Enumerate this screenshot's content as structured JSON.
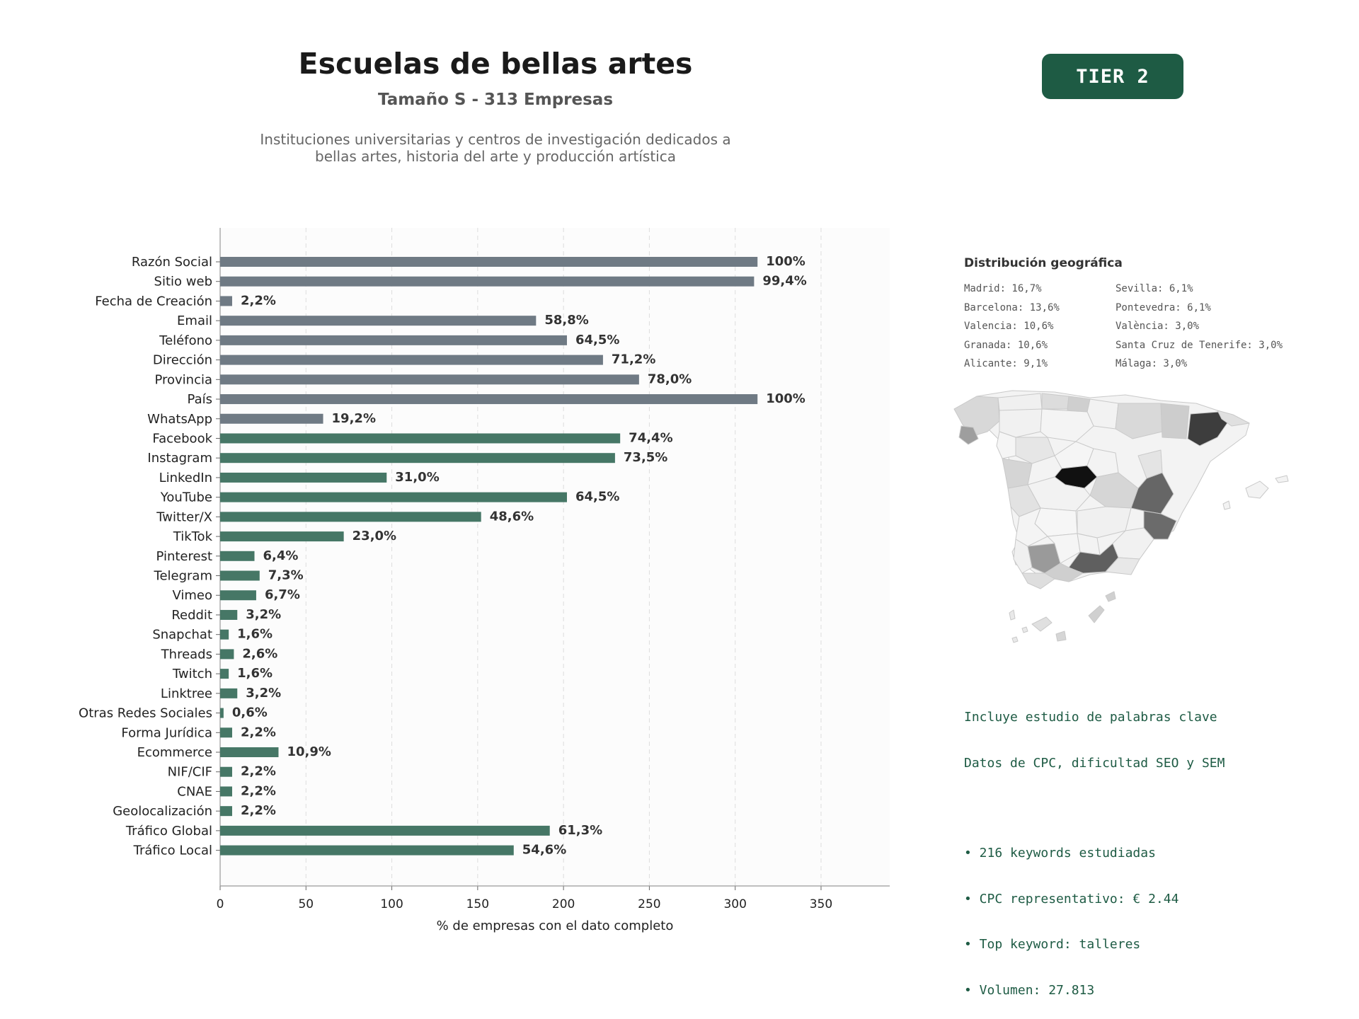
{
  "header": {
    "title": "Escuelas de bellas artes",
    "subtitle": "Tamaño S - 313 Empresas",
    "description_lines": [
      "Instituciones universitarias y centros de investigación dedicados a",
      "bellas artes, historia del arte y producción artística"
    ],
    "tier_label": "TIER 2"
  },
  "colors": {
    "gray_bar": "#6f7a84",
    "green_bar": "#467766",
    "accent": "#1e5b44",
    "plot_bg": "#fcfcfc"
  },
  "chart_data": {
    "type": "bar",
    "orientation": "horizontal",
    "xlabel": "% de empresas con el dato completo",
    "xlim": [
      0,
      390
    ],
    "xticks": [
      0,
      50,
      100,
      150,
      200,
      250,
      300,
      350
    ],
    "grid": "vertical dashed",
    "categories": [
      "Razón Social",
      "Sitio web",
      "Fecha de Creación",
      "Email",
      "Teléfono",
      "Dirección",
      "Provincia",
      "País",
      "WhatsApp",
      "Facebook",
      "Instagram",
      "LinkedIn",
      "YouTube",
      "Twitter/X",
      "TikTok",
      "Pinterest",
      "Telegram",
      "Vimeo",
      "Reddit",
      "Snapchat",
      "Threads",
      "Twitch",
      "Linktree",
      "Otras Redes Sociales",
      "Forma Jurídica",
      "Ecommerce",
      "NIF/CIF",
      "CNAE",
      "Geolocalización",
      "Tráfico Global",
      "Tráfico Local"
    ],
    "values": [
      313,
      311,
      7,
      184,
      202,
      223,
      244,
      313,
      60,
      233,
      230,
      97,
      202,
      152,
      72,
      20,
      23,
      21,
      10,
      5,
      8,
      5,
      10,
      2,
      7,
      34,
      7,
      7,
      7,
      192,
      171
    ],
    "labels": [
      "100%",
      "99,4%",
      "2,2%",
      "58,8%",
      "64,5%",
      "71,2%",
      "78,0%",
      "100%",
      "19,2%",
      "74,4%",
      "73,5%",
      "31,0%",
      "64,5%",
      "48,6%",
      "23,0%",
      "6,4%",
      "7,3%",
      "6,7%",
      "3,2%",
      "1,6%",
      "2,6%",
      "1,6%",
      "3,2%",
      "0,6%",
      "2,2%",
      "10,9%",
      "2,2%",
      "2,2%",
      "2,2%",
      "61,3%",
      "54,6%"
    ],
    "bar_groups": [
      "gray",
      "gray",
      "gray",
      "gray",
      "gray",
      "gray",
      "gray",
      "gray",
      "gray",
      "green",
      "green",
      "green",
      "green",
      "green",
      "green",
      "green",
      "green",
      "green",
      "green",
      "green",
      "green",
      "green",
      "green",
      "green",
      "green",
      "green",
      "green",
      "green",
      "green",
      "green",
      "green"
    ]
  },
  "geo": {
    "title": "Distribución geográfica",
    "items": [
      "Madrid: 16,7%",
      "Sevilla: 6,1%",
      "Barcelona: 13,6%",
      "Pontevedra: 6,1%",
      "Valencia: 10,6%",
      "València: 3,0%",
      "Granada: 10,6%",
      "Santa Cruz de Tenerife: 3,0%",
      "Alicante: 9,1%",
      "Málaga: 3,0%"
    ]
  },
  "keywords": {
    "line1": "Incluye estudio de palabras clave",
    "line2": "Datos de CPC, dificultad SEO y SEM",
    "bullets": [
      "• 216 keywords estudiadas",
      "• CPC representativo: € 2.44",
      "• Top keyword: talleres",
      "• Volumen: 27.813"
    ]
  }
}
